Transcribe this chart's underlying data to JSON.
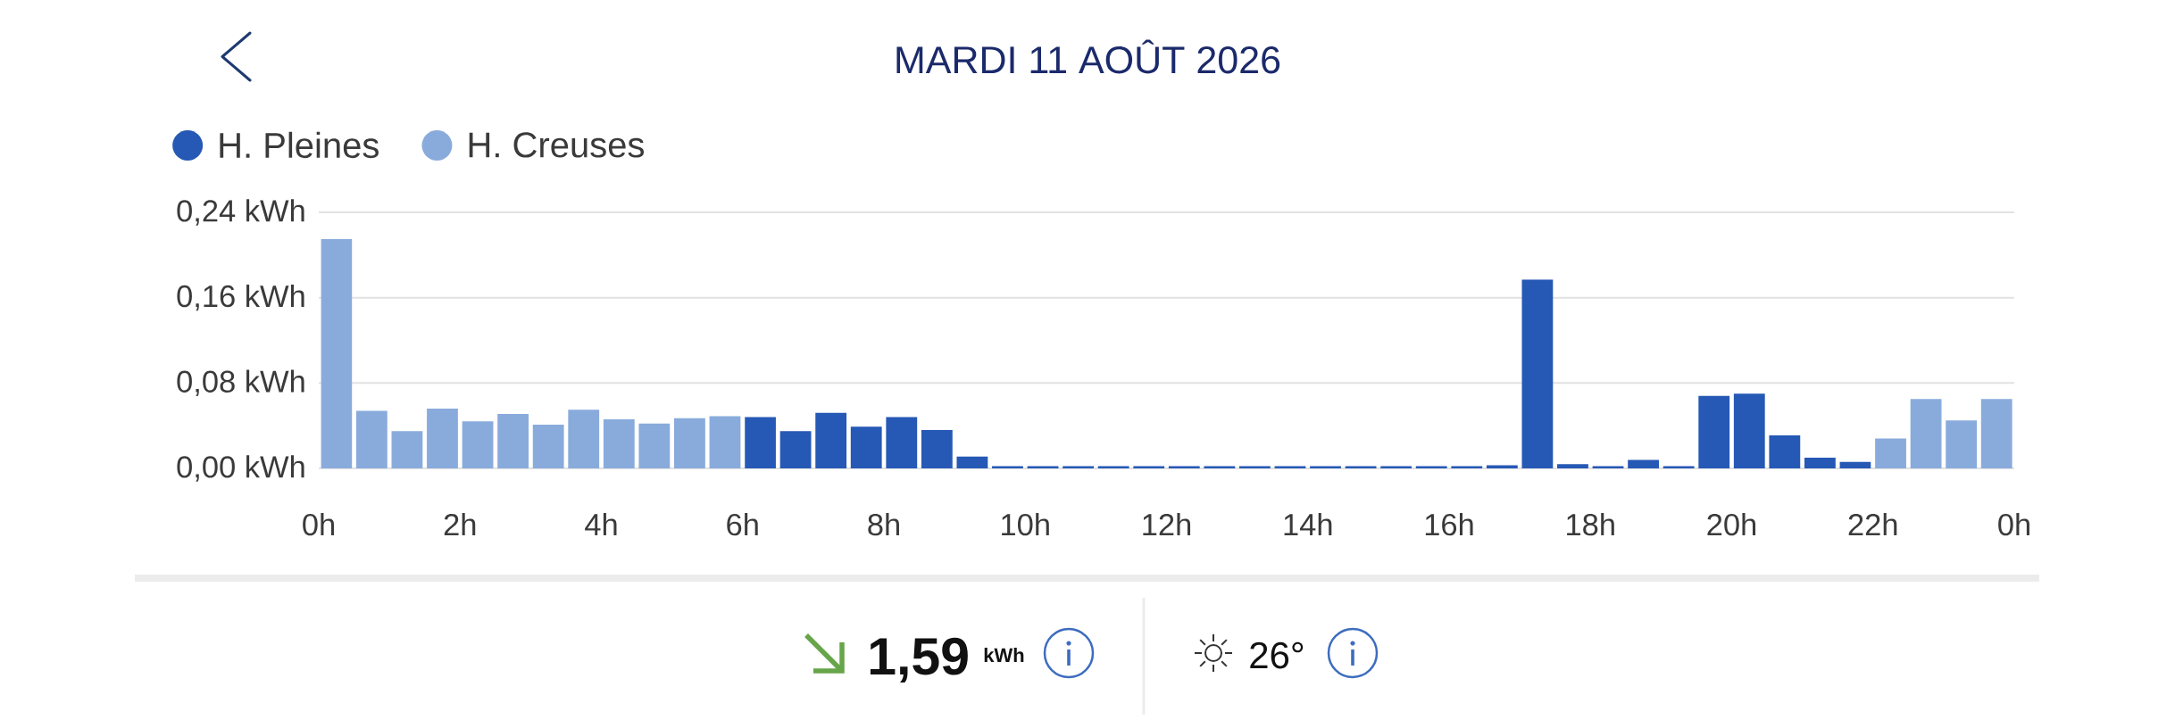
{
  "chart_data": {
    "type": "bar",
    "title": "MARDI 11 AOÛT 2026",
    "x": [
      "2026-08-11T00:15",
      "2026-08-11T00:45",
      "2026-08-11T01:15",
      "2026-08-11T01:45",
      "2026-08-11T02:15",
      "2026-08-11T02:45",
      "2026-08-11T03:15",
      "2026-08-11T03:45",
      "2026-08-11T04:15",
      "2026-08-11T04:45",
      "2026-08-11T05:15",
      "2026-08-11T05:45",
      "2026-08-11T06:15",
      "2026-08-11T06:45",
      "2026-08-11T07:15",
      "2026-08-11T07:45",
      "2026-08-11T08:15",
      "2026-08-11T08:45",
      "2026-08-11T09:15",
      "2026-08-11T09:45",
      "2026-08-11T10:15",
      "2026-08-11T10:45",
      "2026-08-11T11:15",
      "2026-08-11T11:45",
      "2026-08-11T12:15",
      "2026-08-11T12:45",
      "2026-08-11T13:15",
      "2026-08-11T13:45",
      "2026-08-11T14:15",
      "2026-08-11T14:45",
      "2026-08-11T15:15",
      "2026-08-11T15:45",
      "2026-08-11T16:15",
      "2026-08-11T16:45",
      "2026-08-11T17:15",
      "2026-08-11T17:45",
      "2026-08-11T18:15",
      "2026-08-11T18:45",
      "2026-08-11T19:15",
      "2026-08-11T19:45",
      "2026-08-11T20:15",
      "2026-08-11T20:45",
      "2026-08-11T21:15",
      "2026-08-11T21:45",
      "2026-08-11T22:15",
      "2026-08-11T22:45",
      "2026-08-11T23:15",
      "2026-08-11T23:45"
    ],
    "series": [
      {
        "name": "H. Pleines",
        "color": "#2659b5",
        "values": [
          null,
          null,
          null,
          null,
          null,
          null,
          null,
          null,
          null,
          null,
          null,
          null,
          0.048,
          0.035,
          0.052,
          0.039,
          0.048,
          0.036,
          0.011,
          0.002,
          0.002,
          0.002,
          0.002,
          0.002,
          0.002,
          0.002,
          0.002,
          0.002,
          0.002,
          0.002,
          0.002,
          0.002,
          0.002,
          0.003,
          0.177,
          0.004,
          0.002,
          0.008,
          0.002,
          0.068,
          0.07,
          0.031,
          0.01,
          0.006,
          null,
          null,
          null,
          null
        ]
      },
      {
        "name": "H. Creuses",
        "color": "#89abdc",
        "values": [
          0.215,
          0.054,
          0.035,
          0.056,
          0.044,
          0.051,
          0.041,
          0.055,
          0.046,
          0.042,
          0.047,
          0.049,
          null,
          null,
          null,
          null,
          null,
          null,
          null,
          null,
          null,
          null,
          null,
          null,
          null,
          null,
          null,
          null,
          null,
          null,
          null,
          null,
          null,
          null,
          null,
          null,
          null,
          null,
          null,
          null,
          null,
          null,
          null,
          null,
          0.028,
          0.065,
          0.045,
          0.065
        ]
      }
    ],
    "xlim": [
      "2026-08-11T00:00",
      "2026-08-12T00:00"
    ],
    "xticks": [
      {
        "value": "2026-08-11T00:00",
        "label": "0h"
      },
      {
        "value": "2026-08-11T02:00",
        "label": "2h"
      },
      {
        "value": "2026-08-11T04:00",
        "label": "4h"
      },
      {
        "value": "2026-08-11T06:00",
        "label": "6h"
      },
      {
        "value": "2026-08-11T08:00",
        "label": "8h"
      },
      {
        "value": "2026-08-11T10:00",
        "label": "10h"
      },
      {
        "value": "2026-08-11T12:00",
        "label": "12h"
      },
      {
        "value": "2026-08-11T14:00",
        "label": "14h"
      },
      {
        "value": "2026-08-11T16:00",
        "label": "16h"
      },
      {
        "value": "2026-08-11T18:00",
        "label": "18h"
      },
      {
        "value": "2026-08-11T20:00",
        "label": "20h"
      },
      {
        "value": "2026-08-11T22:00",
        "label": "22h"
      },
      {
        "value": "2026-08-12T00:00",
        "label": "0h"
      }
    ],
    "ylim": [
      0,
      0.24
    ],
    "yticks": [
      {
        "value": 0,
        "label": "0,00 kWh"
      },
      {
        "value": 0.08,
        "label": "0,08 kWh"
      },
      {
        "value": 0.16,
        "label": "0,16 kWh"
      },
      {
        "value": 0.24,
        "label": "0,24 kWh"
      }
    ],
    "grid": "y",
    "legend": "top left",
    "annotations": [
      "1,59",
      "kWh",
      "26°"
    ]
  }
}
